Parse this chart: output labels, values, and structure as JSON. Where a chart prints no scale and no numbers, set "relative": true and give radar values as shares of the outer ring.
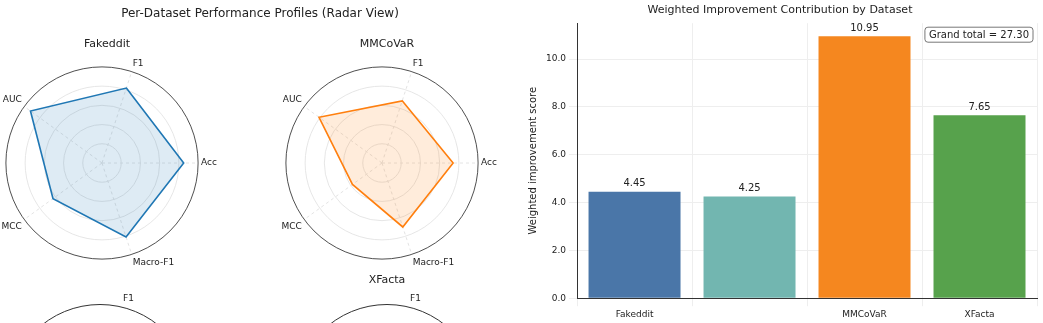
{
  "chart_data": [
    {
      "type": "other",
      "title": "Per-Dataset Performance Profiles (Radar View)"
    },
    {
      "type": "radar",
      "title": "Fakeddit",
      "categories": [
        "F1",
        "Acc",
        "Macro-F1",
        "MCC",
        "AUC"
      ],
      "relative": true,
      "grid": true,
      "legend": false,
      "series": [
        {
          "color": "#1f77b4",
          "values": [
            0.82,
            0.85,
            0.81,
            0.63,
            0.92
          ]
        }
      ]
    },
    {
      "type": "radar",
      "title": "MMCoVaR",
      "categories": [
        "F1",
        "Acc",
        "Macro-F1",
        "MCC",
        "AUC"
      ],
      "relative": true,
      "grid": true,
      "legend": false,
      "series": [
        {
          "color": "#ff7f0e",
          "values": [
            0.68,
            0.74,
            0.7,
            0.38,
            0.81
          ]
        }
      ]
    },
    {
      "type": "other",
      "annotations": [
        "F1"
      ]
    },
    {
      "type": "other",
      "title": "XFacta",
      "annotations": [
        "F1"
      ]
    },
    {
      "type": "bar",
      "title": "Weighted Improvement Contribution by Dataset",
      "ylabel": "Weighted improvement score",
      "categories": [
        "Fakeddit",
        null,
        "MMCoVaR",
        "XFacta"
      ],
      "values": [
        4.45,
        4.25,
        10.95,
        7.65
      ],
      "colors": [
        "#4a76a8",
        "#72b6b0",
        "#f5871f",
        "#57a24c"
      ],
      "ylim": [
        0,
        11.5
      ],
      "yticks": [
        {
          "value": 0,
          "label": "0.0"
        },
        {
          "value": 2,
          "label": "2.0"
        },
        {
          "value": 4,
          "label": "4.0"
        },
        {
          "value": 6,
          "label": "6.0"
        },
        {
          "value": 8,
          "label": "8.0"
        },
        {
          "value": 10,
          "label": "10.0"
        }
      ],
      "grid": true,
      "legend": false,
      "data_labels": true,
      "annotations": [
        "Grand total = 27.30"
      ]
    }
  ]
}
